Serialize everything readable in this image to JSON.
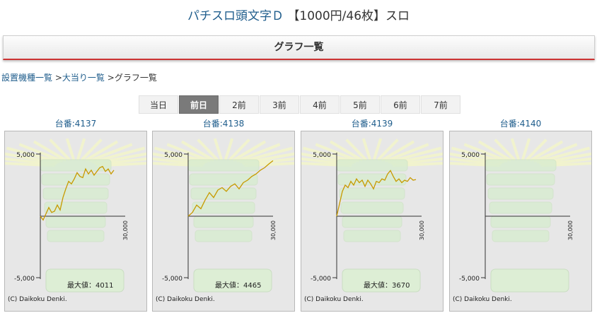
{
  "title": {
    "name": "パチスロ頭文字Ｄ",
    "suffix": "【1000円/46枚】スロ"
  },
  "header": {
    "title": "グラフ一覧"
  },
  "breadcrumb": {
    "item1": "設置機種一覧",
    "item2": "大当り一覧",
    "item3": "グラフ一覧",
    "sep": ">"
  },
  "tabs": [
    "当日",
    "前日",
    "2前",
    "3前",
    "4前",
    "5前",
    "6前",
    "7前"
  ],
  "active_tab": 1,
  "graph_common": {
    "y_top_label": "5,000",
    "y_bottom_label": "-5,000",
    "x_end_label": "30,000",
    "max_prefix": "最大値：",
    "copyright": "(C) Daikoku Denki."
  },
  "machines": [
    {
      "label": "台番:4137",
      "max_value": "4011"
    },
    {
      "label": "台番:4138",
      "max_value": "4465"
    },
    {
      "label": "台番:4139",
      "max_value": "3670"
    },
    {
      "label": "台番:4140",
      "max_value": ""
    }
  ],
  "chart_data": [
    {
      "type": "line",
      "title": "台番:4137",
      "ylim": [
        -5000,
        5000
      ],
      "x": [
        0,
        1000,
        2000,
        3000,
        4000,
        5000,
        6000,
        7000,
        8000,
        9000,
        10000,
        11000,
        12000,
        13000,
        14000,
        15000,
        16000,
        17000,
        18000,
        19000,
        20000,
        21000,
        22000,
        23000,
        24000,
        25000,
        26000
      ],
      "y": [
        0,
        -300,
        200,
        700,
        300,
        400,
        900,
        500,
        1500,
        2200,
        2800,
        2600,
        3000,
        3500,
        3200,
        3100,
        3800,
        3400,
        3700,
        3300,
        3600,
        3900,
        4000,
        3600,
        3800,
        3400,
        3700
      ]
    },
    {
      "type": "line",
      "title": "台番:4138",
      "ylim": [
        -5000,
        5000
      ],
      "x": [
        0,
        1500,
        3000,
        4500,
        6000,
        7500,
        9000,
        10500,
        12000,
        13500,
        15000,
        16500,
        18000,
        19500,
        21000,
        22500,
        24000,
        25500,
        27000,
        28500,
        30000
      ],
      "y": [
        0,
        300,
        900,
        600,
        1300,
        1900,
        1500,
        2100,
        2300,
        2000,
        2400,
        2600,
        2200,
        2700,
        2900,
        3200,
        3400,
        3700,
        3900,
        4200,
        4465
      ]
    },
    {
      "type": "line",
      "title": "台番:4139",
      "ylim": [
        -5000,
        5000
      ],
      "x": [
        0,
        1000,
        2000,
        3000,
        4000,
        5000,
        6000,
        7000,
        8000,
        9000,
        10000,
        11000,
        12000,
        13000,
        14000,
        15000,
        16000,
        17000,
        18000,
        19000,
        20000,
        21000,
        22000,
        23000,
        24000,
        25000,
        26000,
        27000,
        28000
      ],
      "y": [
        0,
        1000,
        2000,
        2500,
        2300,
        2800,
        2500,
        3000,
        2700,
        2900,
        2400,
        2900,
        2600,
        2200,
        2800,
        2700,
        3000,
        2900,
        3400,
        3670,
        3200,
        2800,
        3000,
        2700,
        2900,
        2800,
        3100,
        2900,
        2950
      ]
    },
    {
      "type": "line",
      "title": "台番:4140",
      "ylim": [
        -5000,
        5000
      ],
      "x": [],
      "y": []
    }
  ]
}
